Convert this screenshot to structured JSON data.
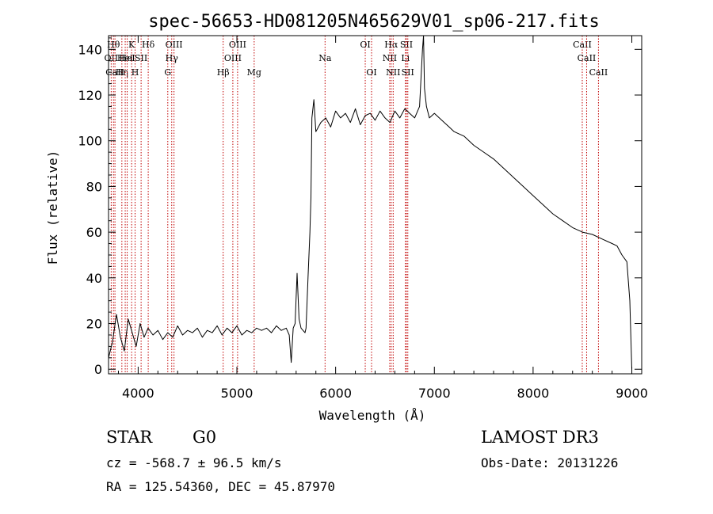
{
  "chart_data": {
    "type": "line",
    "title": "spec-56653-HD081205N465629V01_sp06-217.fits",
    "xlabel": "Wavelength (Å)",
    "ylabel": "Flux (relative)",
    "xlim": [
      3700,
      9100
    ],
    "ylim": [
      -2,
      146
    ],
    "xticks": [
      4000,
      5000,
      6000,
      7000,
      8000,
      9000
    ],
    "yticks": [
      0,
      20,
      40,
      60,
      80,
      100,
      120,
      140
    ],
    "series": [
      {
        "name": "flux",
        "x": [
          3700,
          3740,
          3780,
          3820,
          3860,
          3900,
          3940,
          3980,
          4020,
          4060,
          4100,
          4150,
          4200,
          4250,
          4300,
          4350,
          4400,
          4450,
          4500,
          4550,
          4600,
          4650,
          4700,
          4750,
          4800,
          4850,
          4900,
          4950,
          5000,
          5050,
          5100,
          5150,
          5200,
          5250,
          5300,
          5350,
          5400,
          5450,
          5500,
          5530,
          5550,
          5570,
          5590,
          5610,
          5630,
          5650,
          5670,
          5690,
          5700,
          5720,
          5740,
          5750,
          5760,
          5780,
          5800,
          5850,
          5900,
          5950,
          6000,
          6050,
          6100,
          6150,
          6200,
          6250,
          6300,
          6350,
          6400,
          6450,
          6500,
          6550,
          6600,
          6650,
          6700,
          6750,
          6800,
          6850,
          6880,
          6890,
          6900,
          6920,
          6950,
          7000,
          7050,
          7100,
          7150,
          7200,
          7300,
          7400,
          7500,
          7600,
          7700,
          7800,
          7900,
          8000,
          8100,
          8200,
          8300,
          8400,
          8500,
          8600,
          8700,
          8800,
          8850,
          8900,
          8950,
          8980,
          9000
        ],
        "y": [
          5,
          12,
          24,
          14,
          8,
          22,
          16,
          10,
          20,
          14,
          18,
          15,
          17,
          13,
          16,
          14,
          19,
          15,
          17,
          16,
          18,
          14,
          17,
          16,
          19,
          15,
          18,
          16,
          19,
          15,
          17,
          16,
          18,
          17,
          18,
          16,
          19,
          17,
          18,
          15,
          3,
          18,
          20,
          42,
          22,
          18,
          17,
          16,
          18,
          40,
          60,
          75,
          110,
          118,
          104,
          108,
          110,
          106,
          113,
          110,
          112,
          108,
          114,
          107,
          111,
          112,
          109,
          113,
          110,
          108,
          113,
          110,
          114,
          112,
          110,
          115,
          140,
          150,
          123,
          115,
          110,
          112,
          110,
          108,
          106,
          104,
          102,
          98,
          95,
          92,
          88,
          84,
          80,
          76,
          72,
          68,
          65,
          62,
          60,
          59,
          57,
          55,
          54,
          50,
          47,
          30,
          0
        ]
      }
    ],
    "line_markers": [
      {
        "wl": 3727,
        "label": "OII",
        "row": 2
      },
      {
        "wl": 3750,
        "label": "Hθ",
        "row": 1
      },
      {
        "wl": 3765,
        "label": "CaII",
        "row": 3
      },
      {
        "wl": 3835,
        "label": "Hη",
        "row": 3
      },
      {
        "wl": 3869,
        "label": "HeI",
        "row": 2
      },
      {
        "wl": 3889,
        "label": "HeI",
        "row": 2
      },
      {
        "wl": 3934,
        "label": "K",
        "row": 1
      },
      {
        "wl": 3969,
        "label": "H",
        "row": 3
      },
      {
        "wl": 4030,
        "label": "SII",
        "row": 2
      },
      {
        "wl": 4102,
        "label": "Hδ",
        "row": 1
      },
      {
        "wl": 4300,
        "label": "G",
        "row": 3
      },
      {
        "wl": 4340,
        "label": "Hγ",
        "row": 2
      },
      {
        "wl": 4363,
        "label": "OIII",
        "row": 1
      },
      {
        "wl": 4861,
        "label": "Hβ",
        "row": 3
      },
      {
        "wl": 4959,
        "label": "OIII",
        "row": 2
      },
      {
        "wl": 5007,
        "label": "OIII",
        "row": 1
      },
      {
        "wl": 5175,
        "label": "Mg",
        "row": 3
      },
      {
        "wl": 5893,
        "label": "Na",
        "row": 2
      },
      {
        "wl": 6300,
        "label": "OI",
        "row": 1
      },
      {
        "wl": 6364,
        "label": "OI",
        "row": 3
      },
      {
        "wl": 6548,
        "label": "NII",
        "row": 2
      },
      {
        "wl": 6563,
        "label": "Hα",
        "row": 1
      },
      {
        "wl": 6583,
        "label": "NII",
        "row": 3
      },
      {
        "wl": 6707,
        "label": "Li",
        "row": 2
      },
      {
        "wl": 6717,
        "label": "SII",
        "row": 1
      },
      {
        "wl": 6731,
        "label": "SII",
        "row": 3
      },
      {
        "wl": 8498,
        "label": "CaII",
        "row": 1
      },
      {
        "wl": 8542,
        "label": "CaII",
        "row": 2
      },
      {
        "wl": 8662,
        "label": "CaII",
        "row": 3
      }
    ],
    "colors": {
      "spectrum": "#000000",
      "markers": "#c00000",
      "axes": "#000000"
    }
  },
  "info": {
    "class_label": "STAR",
    "subclass_label": "G0",
    "survey": "LAMOST DR3",
    "velocity": "cz = -568.7 ± 96.5 km/s",
    "obs_date": "Obs-Date: 20131226",
    "coords": "RA = 125.54360, DEC =  45.87970"
  }
}
